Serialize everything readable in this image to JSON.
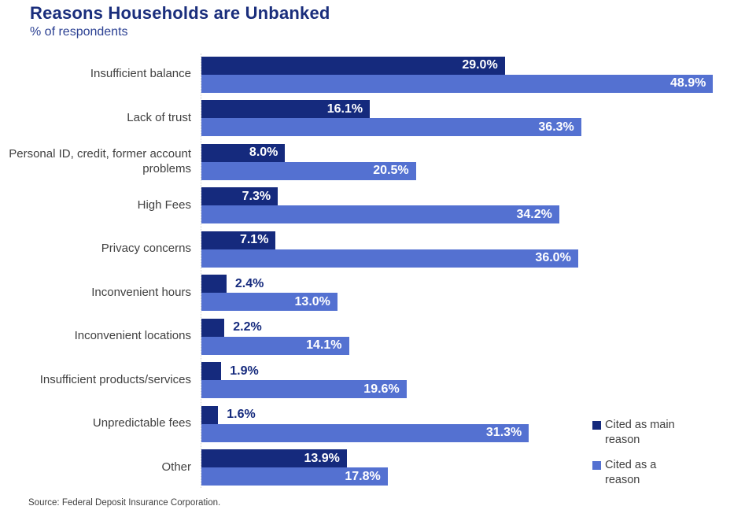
{
  "header": {
    "title": "Reasons Households are Unbanked",
    "subtitle": "% of respondents"
  },
  "source": "Source: Federal Deposit Insurance Corporation.",
  "colors": {
    "main_reason_bar": "#152a7d",
    "a_reason_bar": "#5471d1",
    "title_text": "#1a2e7c",
    "subtitle_text": "#2c4193",
    "outside_value_text": "#152a7d",
    "inside_value_text": "#ffffff",
    "category_text": "#404040"
  },
  "legend": {
    "items": [
      {
        "label": "Cited as main reason",
        "color": "#152a7d"
      },
      {
        "label": "Cited as a reason",
        "color": "#5471d1"
      }
    ]
  },
  "chart_data": {
    "type": "bar",
    "orientation": "horizontal",
    "title": "Reasons Households are Unbanked",
    "subtitle": "% of respondents",
    "categories": [
      "Insufficient balance",
      "Lack of trust",
      "Personal ID, credit, former account problems",
      "High Fees",
      "Privacy concerns",
      "Inconvenient hours",
      "Inconvenient locations",
      "Insufficient products/services",
      "Unpredictable fees",
      "Other"
    ],
    "series": [
      {
        "name": "Cited as main reason",
        "color": "#152a7d",
        "values": [
          29.0,
          16.1,
          8.0,
          7.3,
          7.1,
          2.4,
          2.2,
          1.9,
          1.6,
          13.9
        ]
      },
      {
        "name": "Cited as a reason",
        "color": "#5471d1",
        "values": [
          48.9,
          36.3,
          20.5,
          34.2,
          36.0,
          13.0,
          14.1,
          19.6,
          31.3,
          17.8
        ]
      }
    ],
    "value_suffix": "%",
    "xlim": [
      0,
      50
    ],
    "grid": false,
    "legend_position": "right-bottom",
    "inside_label_min": 5
  }
}
